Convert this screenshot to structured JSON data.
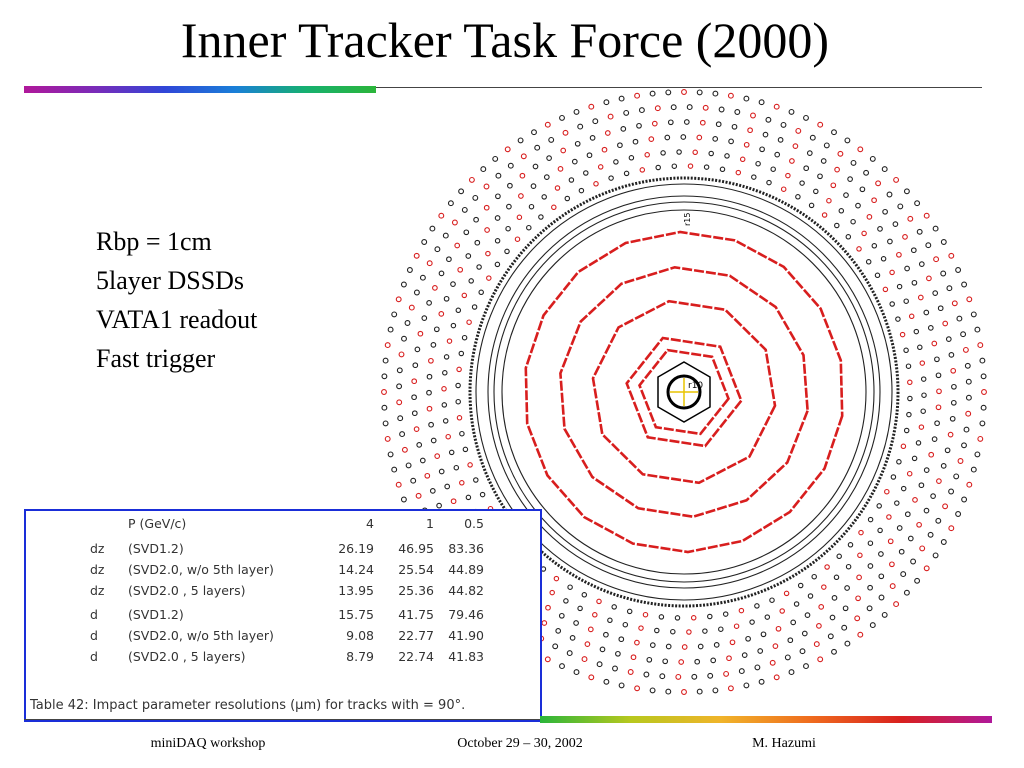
{
  "slide": {
    "title": "Inner Tracker Task Force (2000)",
    "bullets": [
      "Rbp = 1cm",
      "5layer DSSDs",
      "VATA1 readout",
      "Fast trigger"
    ],
    "footer": {
      "left": "miniDAQ workshop",
      "center": "October 29 – 30, 2002",
      "right": "M. Hazumi"
    }
  },
  "detector": {
    "labels": {
      "r10": "r10",
      "r15": "r15"
    },
    "colors": {
      "ladder": "#d81e1e",
      "pmt_ring": "#222222",
      "axis": "#e8c400"
    }
  },
  "table": {
    "header": {
      "label": "P  (GeV/c)",
      "values": [
        "4",
        "1",
        "0.5"
      ]
    },
    "rows": [
      {
        "sym": "dz",
        "det": "(SVD1.2)",
        "values": [
          "26.19",
          "46.95",
          "83.36"
        ]
      },
      {
        "sym": "dz",
        "det": "(SVD2.0,    w/o 5th layer)",
        "values": [
          "14.24",
          "25.54",
          "44.89"
        ]
      },
      {
        "sym": "dz",
        "det": "(SVD2.0  , 5 layers)",
        "values": [
          "13.95",
          "25.36",
          "44.82"
        ]
      },
      {
        "sym": "d",
        "det": "(SVD1.2)",
        "values": [
          "15.75",
          "41.75",
          "79.46"
        ]
      },
      {
        "sym": "d",
        "det": "(SVD2.0,    w/o 5th layer)",
        "values": [
          "9.08",
          "22.77",
          "41.90"
        ]
      },
      {
        "sym": "d",
        "det": "(SVD2.0  , 5 layers)",
        "values": [
          "8.79",
          "22.74",
          "41.83"
        ]
      }
    ],
    "caption": "Table 42:  Impact parameter resolutions (μm)  for tracks with     = 90°."
  }
}
